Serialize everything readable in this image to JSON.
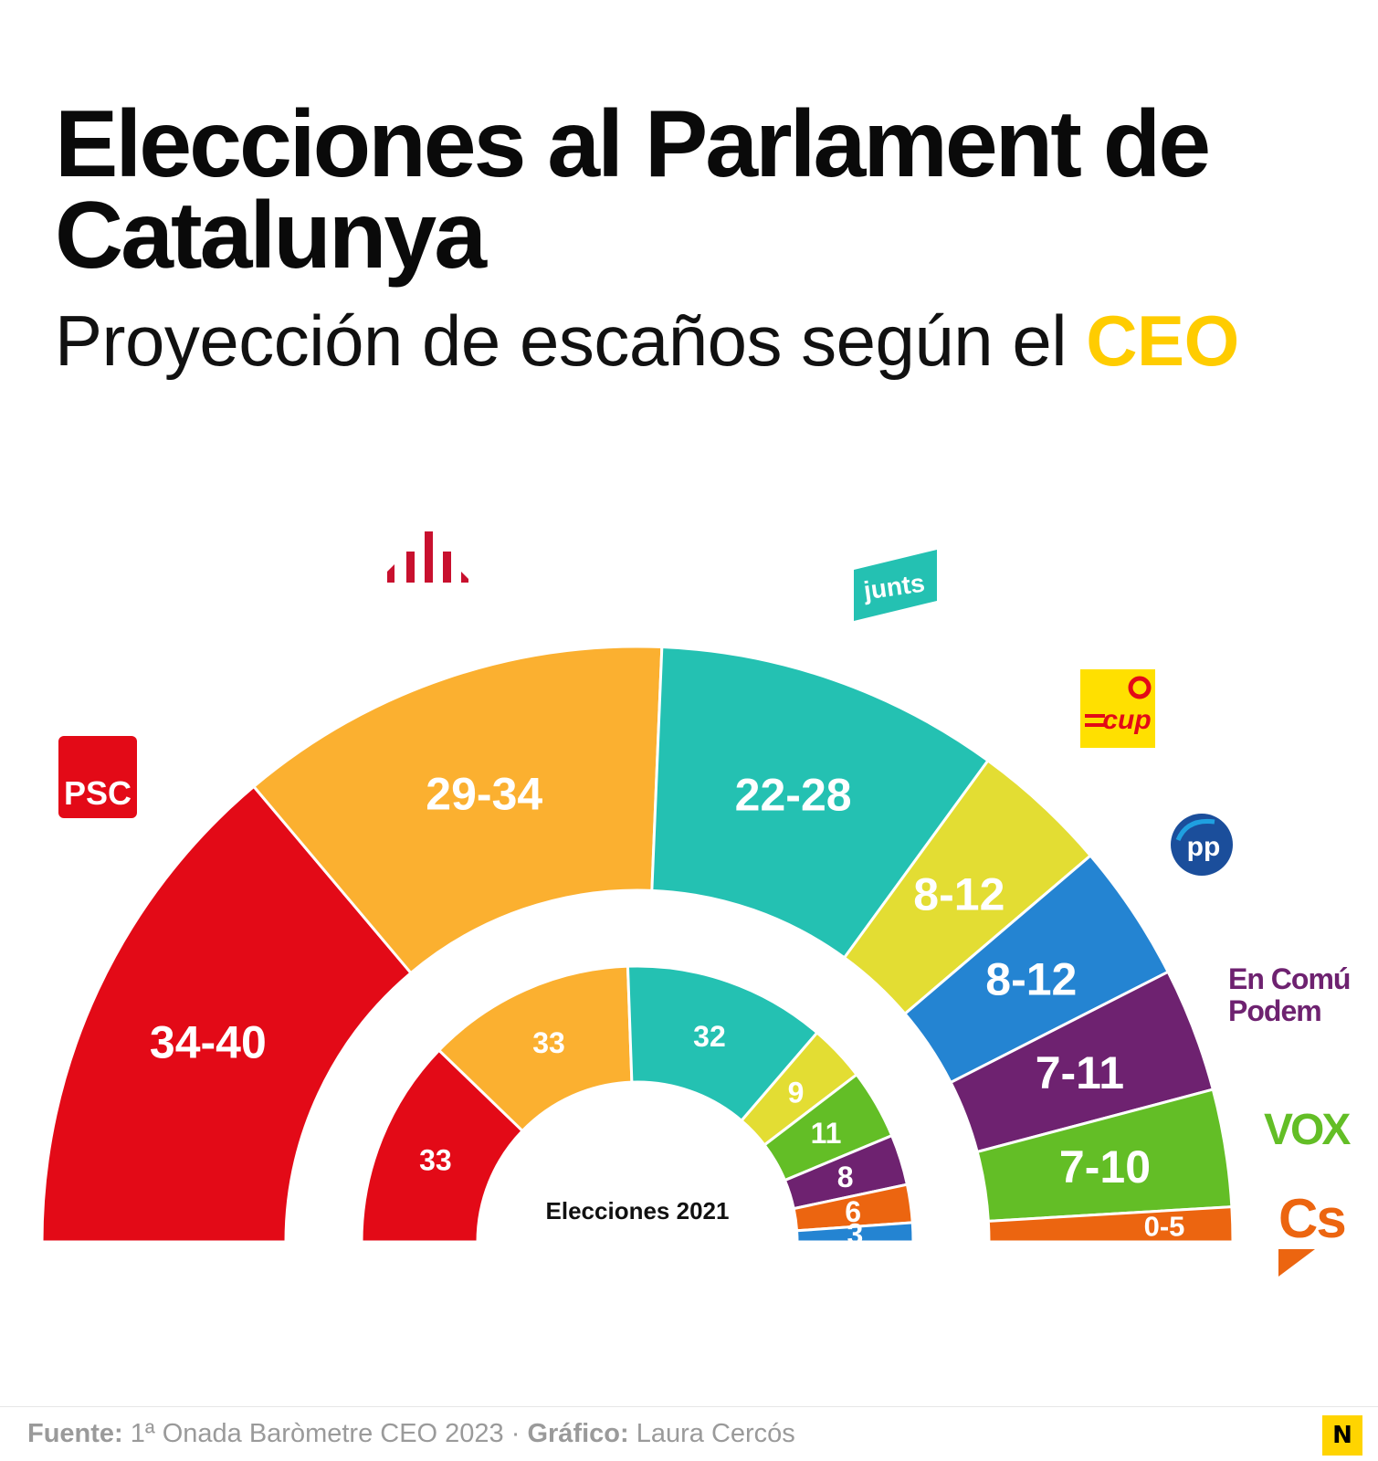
{
  "header": {
    "title": "Elecciones al Parlament de Catalunya",
    "subtitle_prefix": "Proyección de escaños según el",
    "subtitle_highlight": "CEO",
    "highlight_color": "#FFCC00"
  },
  "chart_data": {
    "type": "pie",
    "variant": "double half-donut (hemicycle)",
    "outer": {
      "label": "",
      "slices": [
        {
          "party": "PSC",
          "label": "34-40",
          "low": 34,
          "high": 40,
          "color": "#E30A17"
        },
        {
          "party": "ERC",
          "label": "29-34",
          "low": 29,
          "high": 34,
          "color": "#FBB030"
        },
        {
          "party": "Junts",
          "label": "22-28",
          "low": 22,
          "high": 28,
          "color": "#24C1B2"
        },
        {
          "party": "CUP",
          "label": "8-12",
          "low": 8,
          "high": 12,
          "color": "#E3DD33"
        },
        {
          "party": "PP",
          "label": "8-12",
          "low": 8,
          "high": 12,
          "color": "#2484D2"
        },
        {
          "party": "En Comú Podem",
          "label": "7-11",
          "low": 7,
          "high": 11,
          "color": "#6E2270"
        },
        {
          "party": "VOX",
          "label": "7-10",
          "low": 7,
          "high": 10,
          "color": "#63BE26"
        },
        {
          "party": "Cs",
          "label": "0-5",
          "low": 0,
          "high": 5,
          "color": "#EC6510"
        }
      ]
    },
    "inner": {
      "label": "Elecciones 2021",
      "slices": [
        {
          "party": "PSC",
          "label": "33",
          "value": 33,
          "color": "#E30A17"
        },
        {
          "party": "ERC",
          "label": "33",
          "value": 33,
          "color": "#FBB030"
        },
        {
          "party": "Junts",
          "label": "32",
          "value": 32,
          "color": "#24C1B2"
        },
        {
          "party": "CUP",
          "label": "9",
          "value": 9,
          "color": "#E3DD33"
        },
        {
          "party": "VOX",
          "label": "11",
          "value": 11,
          "color": "#63BE26"
        },
        {
          "party": "En Comú Podem",
          "label": "8",
          "value": 8,
          "color": "#6E2270"
        },
        {
          "party": "Cs",
          "label": "6",
          "value": 6,
          "color": "#EC6510"
        },
        {
          "party": "PP",
          "label": "3",
          "value": 3,
          "color": "#2484D2"
        }
      ]
    },
    "logos": {
      "psc": "PSC",
      "junts": "junts",
      "cup": "cup",
      "pp": "pp",
      "comu_line1": "En Comú",
      "comu_line2": "Podem",
      "vox": "VOX",
      "cs": "Cs"
    }
  },
  "footer": {
    "source_label": "Fuente:",
    "source_text": "1ª Onada Baròmetre CEO 2023 ·",
    "credit_label": "Gráfico:",
    "credit_text": "Laura Cercós",
    "brand_badge": "N"
  }
}
